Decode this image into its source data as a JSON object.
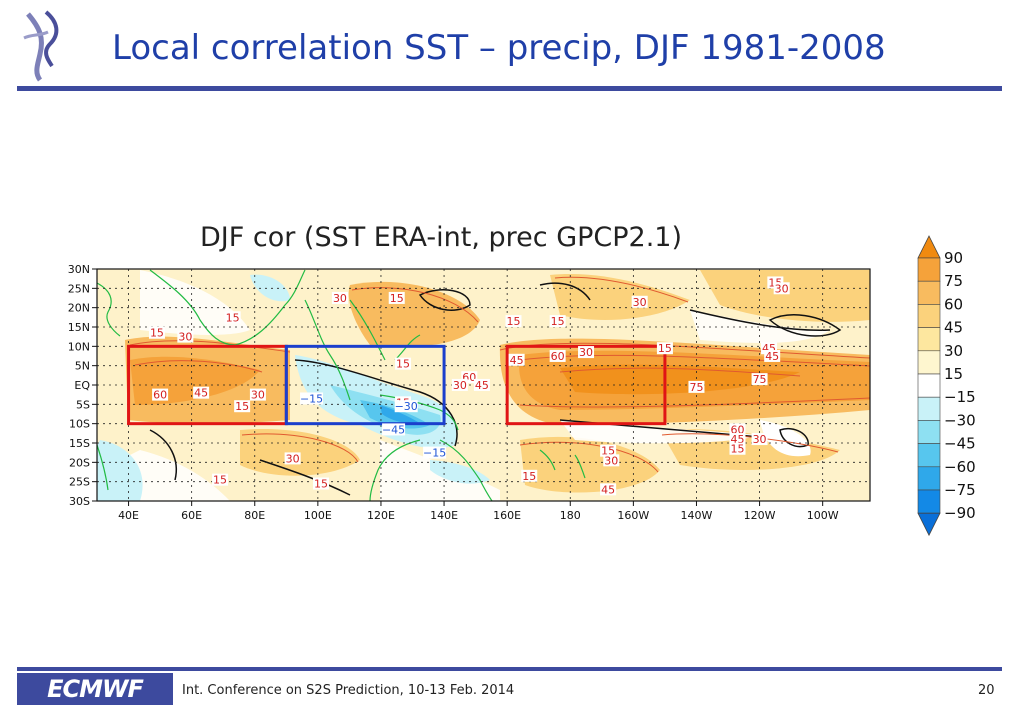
{
  "header": {
    "title": "Local correlation SST – precip, DJF 1981-2008"
  },
  "footer": {
    "logo_text": "ECMWF",
    "conference": "Int. Conference on S2S Prediction, 10-13 Feb. 2014",
    "page_number": "20"
  },
  "chart_data": {
    "type": "heatmap",
    "title": "DJF cor (SST ERA-int, prec GPCP2.1)",
    "x_ticks": [
      "40E",
      "60E",
      "80E",
      "100E",
      "120E",
      "140E",
      "160E",
      "180",
      "160W",
      "140W",
      "120W",
      "100W"
    ],
    "y_ticks": [
      "30N",
      "25N",
      "20N",
      "15N",
      "10N",
      "5N",
      "EQ",
      "5S",
      "10S",
      "15S",
      "20S",
      "25S",
      "30S"
    ],
    "xlim": [
      30,
      275
    ],
    "ylim": [
      -30,
      30
    ],
    "colorbar": {
      "labels": [
        "90",
        "75",
        "60",
        "45",
        "30",
        "15",
        "−15",
        "−30",
        "−45",
        "−60",
        "−75",
        "−90"
      ],
      "colors": {
        "pos_90": "#f08a10",
        "pos_75": "#f5a23a",
        "pos_60": "#f8bb5f",
        "pos_45": "#fbd27c",
        "pos_30": "#fde79f",
        "pos_15": "#fef6cf",
        "neutral": "#ffffff",
        "neg_15": "#c9f2f8",
        "neg_30": "#8ee0f2",
        "neg_45": "#57c6ee",
        "neg_60": "#2fa8ea",
        "neg_75": "#1389e6",
        "neg_90": "#0a6fd8"
      }
    },
    "contour_labels": [
      {
        "text": "15",
        "lon": 49,
        "lat": 13,
        "color": "#d42020"
      },
      {
        "text": "30",
        "lon": 58,
        "lat": 12,
        "color": "#d42020"
      },
      {
        "text": "15",
        "lon": 73,
        "lat": 17,
        "color": "#d42020"
      },
      {
        "text": "60",
        "lon": 50,
        "lat": -3,
        "color": "#d42020"
      },
      {
        "text": "45",
        "lon": 63,
        "lat": -2.5,
        "color": "#d42020"
      },
      {
        "text": "30",
        "lon": 81,
        "lat": -3,
        "color": "#d42020"
      },
      {
        "text": "15",
        "lon": 76,
        "lat": -6,
        "color": "#d42020"
      },
      {
        "text": "30",
        "lon": 107,
        "lat": 22,
        "color": "#d42020"
      },
      {
        "text": "15",
        "lon": 125,
        "lat": 22,
        "color": "#d42020"
      },
      {
        "text": "30",
        "lon": 202,
        "lat": 21,
        "color": "#d42020"
      },
      {
        "text": "15",
        "lon": 245,
        "lat": 26,
        "color": "#d42020"
      },
      {
        "text": "30",
        "lon": 247,
        "lat": 24.5,
        "color": "#d42020"
      },
      {
        "text": "15",
        "lon": 162,
        "lat": 16,
        "color": "#d42020"
      },
      {
        "text": "15",
        "lon": 176,
        "lat": 16,
        "color": "#d42020"
      },
      {
        "text": "60",
        "lon": 176,
        "lat": 7,
        "color": "#d42020"
      },
      {
        "text": "30",
        "lon": 185,
        "lat": 8,
        "color": "#d42020"
      },
      {
        "text": "15",
        "lon": 210,
        "lat": 9,
        "color": "#d42020"
      },
      {
        "text": "45",
        "lon": 163,
        "lat": 6,
        "color": "#d42020"
      },
      {
        "text": "45",
        "lon": 243,
        "lat": 9,
        "color": "#d42020"
      },
      {
        "text": "45",
        "lon": 244,
        "lat": 7,
        "color": "#d42020"
      },
      {
        "text": "75",
        "lon": 240,
        "lat": 1,
        "color": "#d42020"
      },
      {
        "text": "75",
        "lon": 220,
        "lat": -1,
        "color": "#d42020"
      },
      {
        "text": "15",
        "lon": 127,
        "lat": 5,
        "color": "#d42020"
      },
      {
        "text": "60",
        "lon": 148,
        "lat": 1.5,
        "color": "#d42020"
      },
      {
        "text": "30",
        "lon": 145,
        "lat": -0.5,
        "color": "#d42020"
      },
      {
        "text": "45",
        "lon": 152,
        "lat": -0.5,
        "color": "#d42020"
      },
      {
        "text": "15",
        "lon": 127,
        "lat": -5,
        "color": "#d42020"
      },
      {
        "text": "60",
        "lon": 233,
        "lat": -12,
        "color": "#d42020"
      },
      {
        "text": "45",
        "lon": 233,
        "lat": -14.5,
        "color": "#d42020"
      },
      {
        "text": "30",
        "lon": 240,
        "lat": -14.5,
        "color": "#d42020"
      },
      {
        "text": "15",
        "lon": 233,
        "lat": -17,
        "color": "#d42020"
      },
      {
        "text": "15",
        "lon": 192,
        "lat": -17.5,
        "color": "#d42020"
      },
      {
        "text": "30",
        "lon": 193,
        "lat": -20,
        "color": "#d42020"
      },
      {
        "text": "15",
        "lon": 167,
        "lat": -24,
        "color": "#d42020"
      },
      {
        "text": "45",
        "lon": 192,
        "lat": -27.5,
        "color": "#d42020"
      },
      {
        "text": "30",
        "lon": 92,
        "lat": -19.5,
        "color": "#d42020"
      },
      {
        "text": "15",
        "lon": 69,
        "lat": -25,
        "color": "#d42020"
      },
      {
        "text": "15",
        "lon": 101,
        "lat": -26,
        "color": "#d42020"
      },
      {
        "text": "−15",
        "lon": 98,
        "lat": -4,
        "color": "#1f55d6"
      },
      {
        "text": "−30",
        "lon": 128,
        "lat": -6,
        "color": "#1f55d6"
      },
      {
        "text": "−45",
        "lon": 124,
        "lat": -12,
        "color": "#1f55d6"
      },
      {
        "text": "−15",
        "lon": 137,
        "lat": -18,
        "color": "#1f55d6"
      }
    ],
    "boxes": [
      {
        "lon1": 40,
        "lon2": 90,
        "lat1": -10,
        "lat2": 10,
        "color": "#e01515"
      },
      {
        "lon1": 90,
        "lon2": 140,
        "lat1": -10,
        "lat2": 10,
        "color": "#1b3fcc"
      },
      {
        "lon1": 160,
        "lon2": 210,
        "lat1": -10,
        "lat2": 10,
        "color": "#e01515"
      }
    ]
  }
}
